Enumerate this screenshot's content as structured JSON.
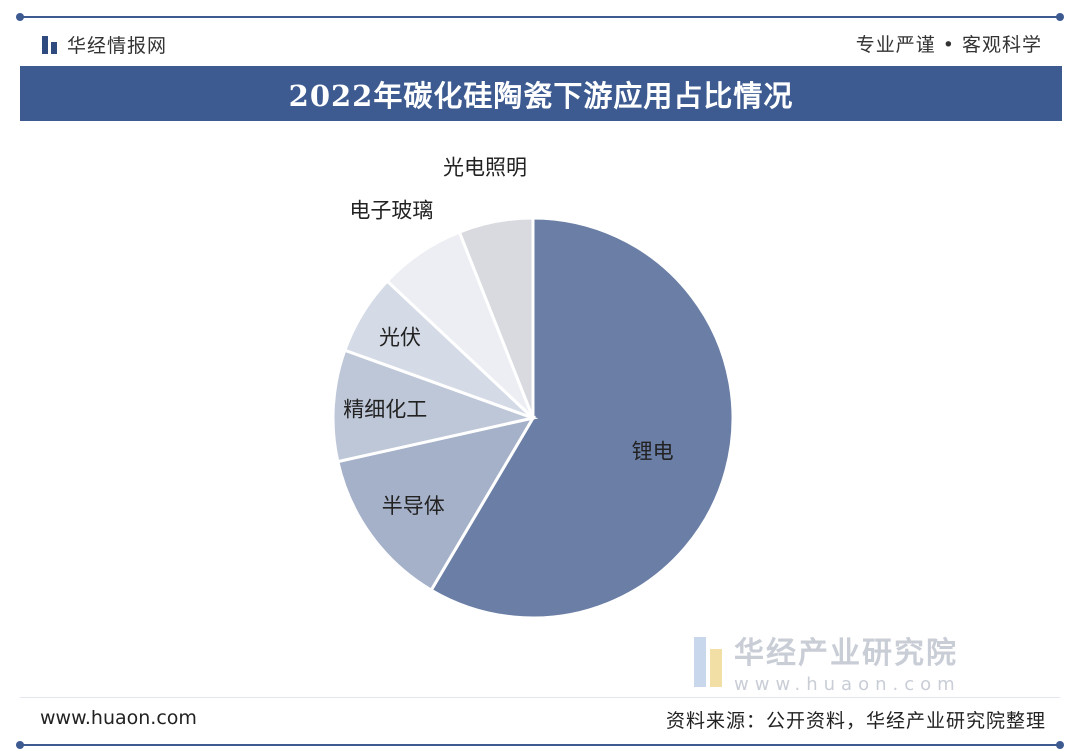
{
  "header": {
    "brand": "华经情报网",
    "tagline": "专业严谨 • 客观科学"
  },
  "chart_data": {
    "type": "pie",
    "title": "2022年碳化硅陶瓷下游应用占比情况",
    "start_angle_deg": 0,
    "direction": "clockwise",
    "slices": [
      {
        "label": "锂电",
        "value": 58.5,
        "color": "#6a7ea6"
      },
      {
        "label": "半导体",
        "value": 13.0,
        "color": "#a5b1c9"
      },
      {
        "label": "精细化工",
        "value": 9.0,
        "color": "#bec7d8"
      },
      {
        "label": "光伏",
        "value": 6.5,
        "color": "#d5dbe6"
      },
      {
        "label": "电子玻璃",
        "value": 7.0,
        "color": "#eceef3"
      },
      {
        "label": "光电照明",
        "value": 6.0,
        "color": "#d8dadf"
      }
    ]
  },
  "footer": {
    "logo_cn": "华经产业研究院",
    "logo_en": "www.huaon.com",
    "url": "www.huaon.com",
    "source": "资料来源：公开资料，华经产业研究院整理"
  }
}
